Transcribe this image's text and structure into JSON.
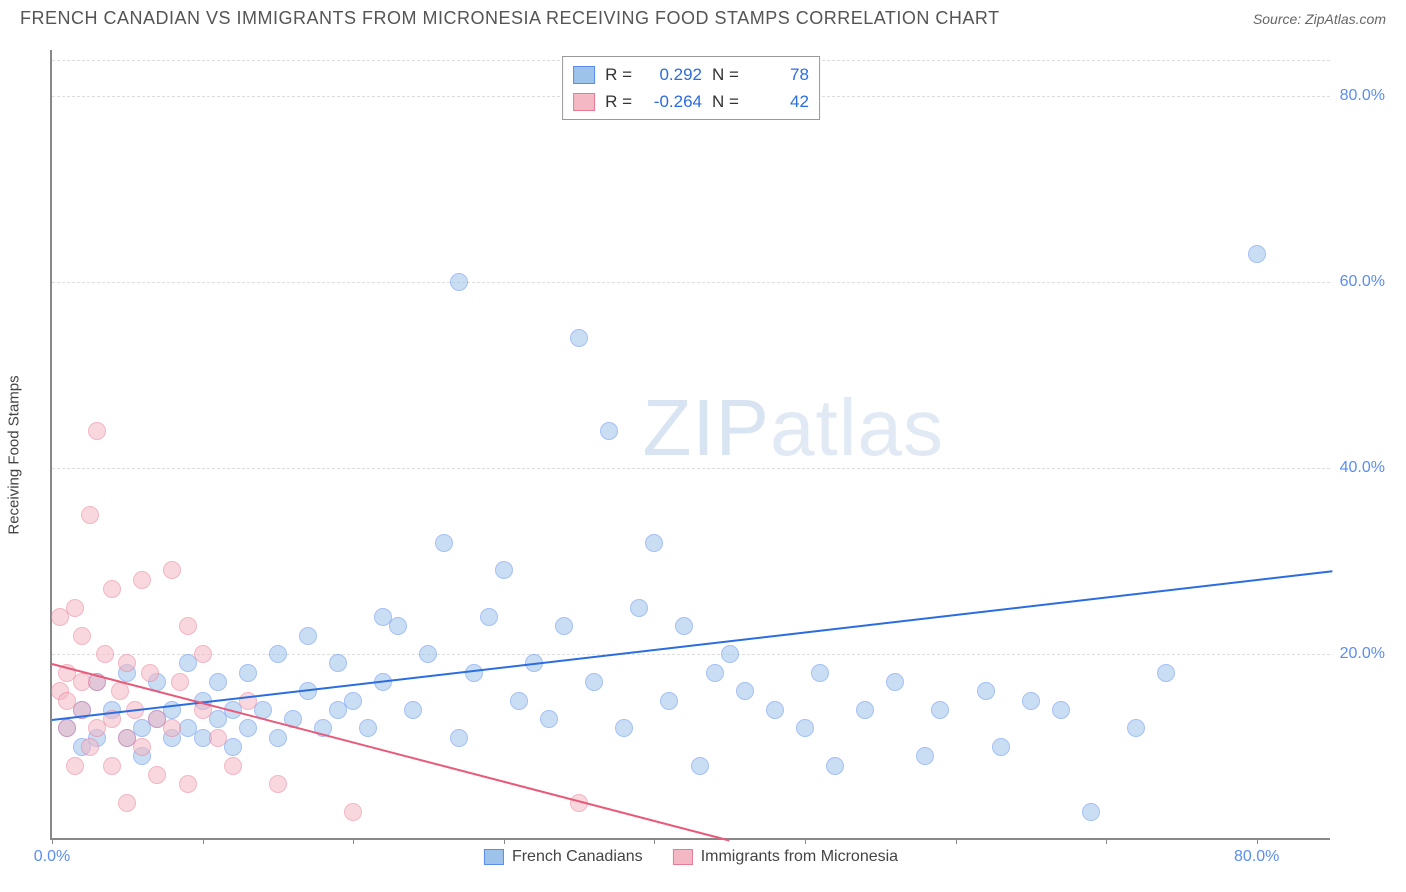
{
  "header": {
    "title": "FRENCH CANADIAN VS IMMIGRANTS FROM MICRONESIA RECEIVING FOOD STAMPS CORRELATION CHART",
    "source_label": "Source:",
    "source_value": "ZipAtlas.com"
  },
  "watermark": {
    "part1": "ZIP",
    "part2": "atlas"
  },
  "chart": {
    "type": "scatter",
    "y_axis_title": "Receiving Food Stamps",
    "xlim": [
      0,
      85
    ],
    "ylim": [
      0,
      85
    ],
    "x_ticks": [
      0,
      10,
      20,
      30,
      40,
      50,
      60,
      70,
      80
    ],
    "x_tick_labels": [
      "0.0%",
      "",
      "",
      "",
      "",
      "",
      "",
      "",
      "80.0%"
    ],
    "y_ticks": [
      20,
      40,
      60,
      80
    ],
    "y_tick_labels": [
      "20.0%",
      "40.0%",
      "60.0%",
      "80.0%"
    ],
    "grid_color": "#dddddd",
    "axis_color": "#888888",
    "background_color": "#ffffff",
    "marker_radius": 9,
    "marker_opacity": 0.55,
    "series": [
      {
        "name": "French Canadians",
        "fill_color": "#9ec3ea",
        "stroke_color": "#5b8def",
        "R": "0.292",
        "N": "78",
        "trend": {
          "x1": 0,
          "y1": 13,
          "x2": 85,
          "y2": 29,
          "color": "#2b6de0",
          "width": 2
        },
        "points": [
          [
            1,
            12
          ],
          [
            2,
            10
          ],
          [
            2,
            14
          ],
          [
            3,
            11
          ],
          [
            3,
            17
          ],
          [
            4,
            14
          ],
          [
            5,
            11
          ],
          [
            5,
            18
          ],
          [
            6,
            12
          ],
          [
            6,
            9
          ],
          [
            7,
            13
          ],
          [
            7,
            17
          ],
          [
            8,
            11
          ],
          [
            8,
            14
          ],
          [
            9,
            12
          ],
          [
            9,
            19
          ],
          [
            10,
            15
          ],
          [
            10,
            11
          ],
          [
            11,
            13
          ],
          [
            11,
            17
          ],
          [
            12,
            10
          ],
          [
            12,
            14
          ],
          [
            13,
            18
          ],
          [
            13,
            12
          ],
          [
            14,
            14
          ],
          [
            15,
            20
          ],
          [
            15,
            11
          ],
          [
            16,
            13
          ],
          [
            17,
            22
          ],
          [
            17,
            16
          ],
          [
            18,
            12
          ],
          [
            19,
            14
          ],
          [
            19,
            19
          ],
          [
            20,
            15
          ],
          [
            21,
            12
          ],
          [
            22,
            24
          ],
          [
            22,
            17
          ],
          [
            23,
            23
          ],
          [
            24,
            14
          ],
          [
            25,
            20
          ],
          [
            26,
            32
          ],
          [
            27,
            11
          ],
          [
            27,
            60
          ],
          [
            28,
            18
          ],
          [
            29,
            24
          ],
          [
            30,
            29
          ],
          [
            31,
            15
          ],
          [
            32,
            19
          ],
          [
            33,
            13
          ],
          [
            34,
            23
          ],
          [
            35,
            54
          ],
          [
            36,
            17
          ],
          [
            37,
            44
          ],
          [
            38,
            12
          ],
          [
            39,
            25
          ],
          [
            40,
            32
          ],
          [
            41,
            15
          ],
          [
            42,
            23
          ],
          [
            43,
            8
          ],
          [
            44,
            18
          ],
          [
            46,
            16
          ],
          [
            48,
            14
          ],
          [
            50,
            12
          ],
          [
            51,
            18
          ],
          [
            52,
            8
          ],
          [
            54,
            14
          ],
          [
            56,
            17
          ],
          [
            58,
            9
          ],
          [
            59,
            14
          ],
          [
            62,
            16
          ],
          [
            63,
            10
          ],
          [
            65,
            15
          ],
          [
            67,
            14
          ],
          [
            69,
            3
          ],
          [
            72,
            12
          ],
          [
            74,
            18
          ],
          [
            80,
            63
          ],
          [
            45,
            20
          ]
        ]
      },
      {
        "name": "Immigrants from Micronesia",
        "fill_color": "#f4b8c4",
        "stroke_color": "#e87b94",
        "R": "-0.264",
        "N": "42",
        "trend": {
          "x1": 0,
          "y1": 19,
          "x2": 45,
          "y2": 0,
          "color": "#e85a7a",
          "width": 2
        },
        "points": [
          [
            0.5,
            16
          ],
          [
            0.5,
            24
          ],
          [
            1,
            18
          ],
          [
            1,
            12
          ],
          [
            1,
            15
          ],
          [
            1.5,
            25
          ],
          [
            1.5,
            8
          ],
          [
            2,
            14
          ],
          [
            2,
            22
          ],
          [
            2,
            17
          ],
          [
            2.5,
            35
          ],
          [
            2.5,
            10
          ],
          [
            3,
            17
          ],
          [
            3,
            44
          ],
          [
            3,
            12
          ],
          [
            3.5,
            20
          ],
          [
            4,
            27
          ],
          [
            4,
            13
          ],
          [
            4,
            8
          ],
          [
            4.5,
            16
          ],
          [
            5,
            19
          ],
          [
            5,
            11
          ],
          [
            5,
            4
          ],
          [
            5.5,
            14
          ],
          [
            6,
            10
          ],
          [
            6,
            28
          ],
          [
            6.5,
            18
          ],
          [
            7,
            7
          ],
          [
            7,
            13
          ],
          [
            8,
            29
          ],
          [
            8,
            12
          ],
          [
            8.5,
            17
          ],
          [
            9,
            6
          ],
          [
            9,
            23
          ],
          [
            10,
            14
          ],
          [
            10,
            20
          ],
          [
            11,
            11
          ],
          [
            12,
            8
          ],
          [
            13,
            15
          ],
          [
            15,
            6
          ],
          [
            20,
            3
          ],
          [
            35,
            4
          ]
        ]
      }
    ]
  },
  "legend_top": {
    "rows": [
      {
        "swatch_fill": "#9ec3ea",
        "swatch_stroke": "#5b8def",
        "r_label": "R =",
        "r_value": "0.292",
        "n_label": "N =",
        "n_value": "78"
      },
      {
        "swatch_fill": "#f4b8c4",
        "swatch_stroke": "#e87b94",
        "r_label": "R =",
        "r_value": "-0.264",
        "n_label": "N =",
        "n_value": "42"
      }
    ]
  },
  "legend_bottom": {
    "items": [
      {
        "swatch_fill": "#9ec3ea",
        "swatch_stroke": "#5b8def",
        "label": "French Canadians"
      },
      {
        "swatch_fill": "#f4b8c4",
        "swatch_stroke": "#e87b94",
        "label": "Immigrants from Micronesia"
      }
    ]
  }
}
